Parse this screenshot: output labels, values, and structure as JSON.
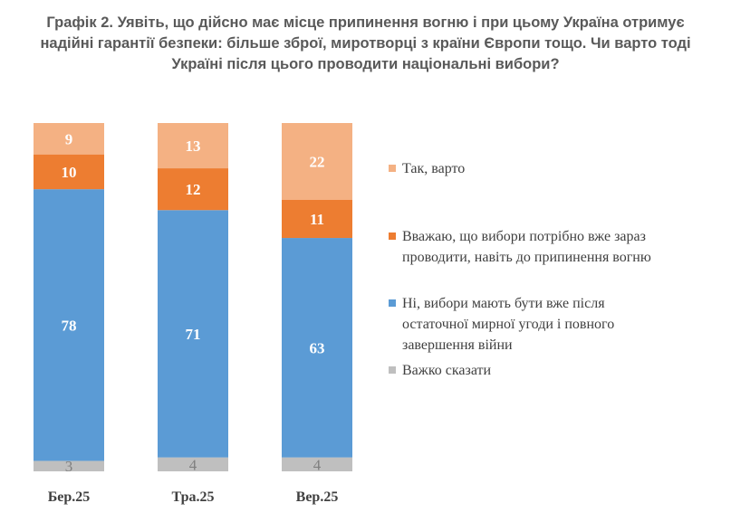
{
  "title_lines": [
    "Графік 2. Уявіть, що дійсно має місце припинення вогню і при цьому Україна отримує",
    "надійні гарантії безпеки: більше зброї, миротворці з країни Європи тощо. Чи варто тоді",
    "Україні після цього проводити національні вибори?"
  ],
  "chart_data": {
    "type": "bar",
    "stacked": true,
    "categories": [
      "Бер.25",
      "Тра.25",
      "Вер.25"
    ],
    "series": [
      {
        "name": "Важко сказати",
        "color": "#bfbfbf",
        "label_color": "#7f7f7f",
        "values": [
          3,
          4,
          4
        ]
      },
      {
        "name": "Ні, вибори мають бути вже після остаточної мирної угоди і повного завершення війни",
        "color": "#5b9bd5",
        "label_color": "#ffffff",
        "values": [
          78,
          71,
          63
        ]
      },
      {
        "name": "Вважаю, що вибори потрібно вже зараз проводити, навіть до припинення вогню",
        "color": "#ed7d31",
        "label_color": "#ffffff",
        "values": [
          10,
          12,
          11
        ]
      },
      {
        "name": "Так, варто",
        "color": "#f4b183",
        "label_color": "#ffffff",
        "values": [
          9,
          13,
          22
        ]
      }
    ],
    "legend": {
      "position": "right",
      "items": [
        {
          "lines": [
            "Так, варто"
          ],
          "color": "#f4b183"
        },
        {
          "lines": [
            "Вважаю, що вибори потрібно вже зараз",
            "проводити, навіть до припинення вогню"
          ],
          "color": "#ed7d31"
        },
        {
          "lines": [
            "Ні, вибори мають бути вже після",
            "остаточної мирної угоди і повного",
            "завершення війни"
          ],
          "color": "#5b9bd5"
        },
        {
          "lines": [
            "Важко сказати"
          ],
          "color": "#bfbfbf"
        }
      ]
    },
    "ylim": [
      0,
      100
    ],
    "grid": false
  }
}
